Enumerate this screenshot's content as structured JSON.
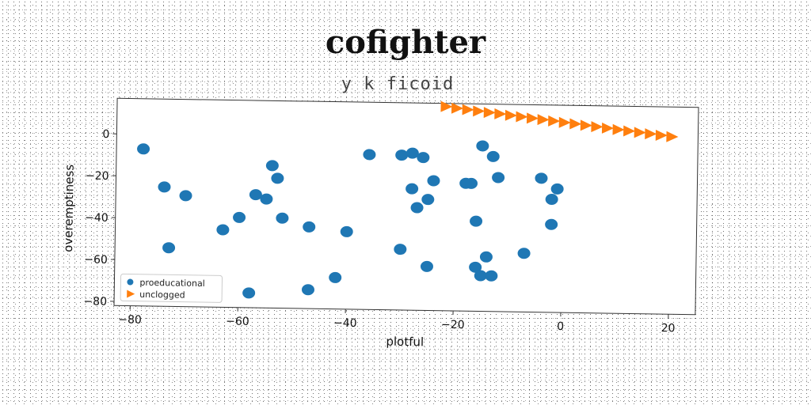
{
  "chart_data": {
    "type": "scatter",
    "title": "cofighter",
    "subtitle": "y k ficoid",
    "xlabel": "plotful",
    "ylabel": "overemptiness",
    "xlim": [
      -83,
      25
    ],
    "ylim": [
      -82,
      17
    ],
    "xticks": [
      -80,
      -60,
      -40,
      -20,
      0,
      20
    ],
    "yticks": [
      0,
      -20,
      -40,
      -60,
      -80
    ],
    "grid": false,
    "legend_position": "lower-left",
    "series": [
      {
        "name": "proeducational",
        "marker": "circle",
        "color": "#1f77b4",
        "points": [
          [
            -78,
            -7
          ],
          [
            -74,
            -25
          ],
          [
            -70,
            -29
          ],
          [
            -73,
            -54
          ],
          [
            -63,
            -45
          ],
          [
            -60,
            -39
          ],
          [
            -57,
            -28
          ],
          [
            -55,
            -30
          ],
          [
            -54,
            -14
          ],
          [
            -53,
            -20
          ],
          [
            -52,
            -39
          ],
          [
            -47,
            -43
          ],
          [
            -47,
            -73
          ],
          [
            -42,
            -67
          ],
          [
            -40,
            -45
          ],
          [
            -36,
            -8
          ],
          [
            -30,
            -8
          ],
          [
            -30,
            -53
          ],
          [
            -28,
            -7
          ],
          [
            -26,
            -9
          ],
          [
            -28,
            -24
          ],
          [
            -27,
            -33
          ],
          [
            -25,
            -29
          ],
          [
            -25,
            -61
          ],
          [
            -24,
            -20
          ],
          [
            -18,
            -21
          ],
          [
            -17,
            -21
          ],
          [
            -16,
            -39
          ],
          [
            -16,
            -61
          ],
          [
            -15,
            -3
          ],
          [
            -15,
            -65
          ],
          [
            -14,
            -56
          ],
          [
            -13,
            -8
          ],
          [
            -13,
            -65
          ],
          [
            -12,
            -18
          ],
          [
            -7,
            -54
          ],
          [
            -4,
            -18
          ],
          [
            -2,
            -28
          ],
          [
            -2,
            -40
          ],
          [
            -1,
            -23
          ],
          [
            -58,
            -75
          ]
        ]
      },
      {
        "name": "unclogged",
        "marker": "triangle",
        "color": "#ff7f0e",
        "points": [
          [
            -22,
            15.5
          ],
          [
            -20,
            14.8
          ],
          [
            -18,
            14.2
          ],
          [
            -16,
            13.6
          ],
          [
            -14,
            13.0
          ],
          [
            -12,
            12.4
          ],
          [
            -10,
            11.8
          ],
          [
            -8,
            11.2
          ],
          [
            -6,
            10.6
          ],
          [
            -4,
            10.0
          ],
          [
            -2,
            9.4
          ],
          [
            0,
            8.8
          ],
          [
            2,
            8.2
          ],
          [
            4,
            7.6
          ],
          [
            6,
            7.0
          ],
          [
            8,
            6.4
          ],
          [
            10,
            5.8
          ],
          [
            12,
            5.2
          ],
          [
            14,
            4.6
          ],
          [
            16,
            4.0
          ],
          [
            18,
            3.4
          ],
          [
            20,
            2.8
          ]
        ]
      }
    ]
  }
}
